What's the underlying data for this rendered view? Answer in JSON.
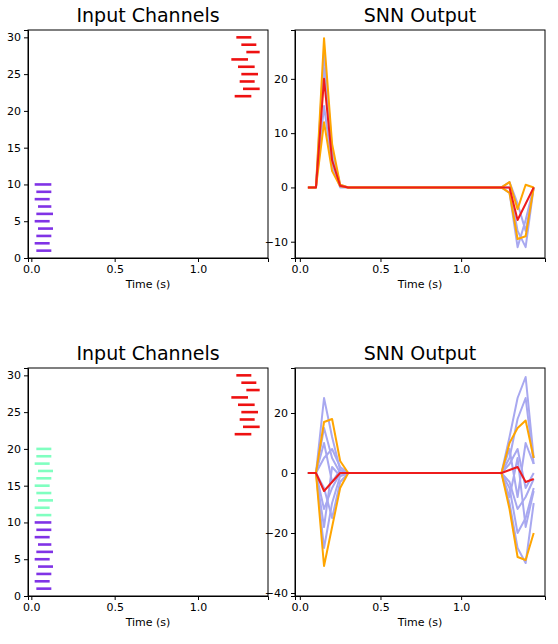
{
  "chart_data": [
    {
      "type": "raster",
      "title": "Input Channels",
      "x_label": "Time (s)",
      "xlim": [
        -0.02,
        1.42
      ],
      "xticks": [
        {
          "value": 0,
          "label": "0.0"
        },
        0.5,
        {
          "value": 1,
          "label": "1.0"
        }
      ],
      "ylim": [
        0,
        31
      ],
      "yticks": [
        0,
        5,
        10,
        15,
        20,
        25,
        30
      ],
      "series": [
        {
          "color": "#8033e6",
          "values": [
            1,
            2,
            3,
            4,
            5,
            6,
            7,
            8,
            9,
            10
          ],
          "start": [
            0.03,
            0.02,
            0.03,
            0.04,
            0.02,
            0.03,
            0.04,
            0.02,
            0.03,
            0.02
          ],
          "end": [
            0.12,
            0.11,
            0.12,
            0.13,
            0.11,
            0.13,
            0.12,
            0.11,
            0.12,
            0.12
          ]
        },
        {
          "color": "#ee1111",
          "values": [
            22,
            23,
            24,
            25,
            26,
            27,
            28,
            29,
            30
          ],
          "start": [
            1.22,
            1.27,
            1.25,
            1.26,
            1.24,
            1.2,
            1.29,
            1.26,
            1.23
          ],
          "end": [
            1.32,
            1.37,
            1.34,
            1.36,
            1.34,
            1.3,
            1.37,
            1.35,
            1.32
          ]
        }
      ]
    },
    {
      "type": "line",
      "title": "SNN Output",
      "x_label": "Time (s)",
      "x": [
        0.05,
        0.1,
        0.15,
        0.2,
        0.25,
        0.3,
        1.25,
        1.3,
        1.35,
        1.4,
        1.45
      ],
      "xlim": [
        -0.03,
        1.52
      ],
      "xticks": [
        {
          "value": 0,
          "label": "0.0"
        },
        0.5,
        {
          "value": 1,
          "label": "1.0"
        }
      ],
      "ylim": [
        -13,
        29
      ],
      "yticks": [
        {
          "value": -10,
          "label": "−10"
        },
        0,
        10,
        20
      ],
      "series": [
        {
          "color": "#a8a8f0",
          "values": [
            0,
            0,
            22,
            6,
            0.5,
            0,
            0,
            0,
            -8,
            -11,
            0
          ]
        },
        {
          "color": "#a8a8f0",
          "values": [
            0,
            0,
            15,
            4,
            0,
            0,
            0,
            1,
            -3,
            -8,
            0
          ]
        },
        {
          "color": "#a8a8f0",
          "values": [
            0,
            0,
            25,
            7,
            0.4,
            0,
            0,
            -1,
            -11,
            -6,
            0
          ]
        },
        {
          "color": "#ffa500",
          "values": [
            0,
            0,
            27.5,
            8,
            0.5,
            0,
            0,
            1,
            -4,
            0.5,
            0
          ]
        },
        {
          "color": "#ffa500",
          "values": [
            0,
            0,
            12,
            3,
            0.2,
            0,
            0,
            -1,
            -9.5,
            -9,
            0
          ]
        },
        {
          "color": "#ee1c1c",
          "values": [
            0,
            0,
            20,
            5,
            0.3,
            0,
            0,
            0,
            -6,
            -3,
            0
          ]
        }
      ]
    },
    {
      "type": "raster",
      "title": "Input Channels",
      "x_label": "Time (s)",
      "xlim": [
        -0.02,
        1.42
      ],
      "xticks": [
        {
          "value": 0,
          "label": "0.0"
        },
        0.5,
        {
          "value": 1,
          "label": "1.0"
        }
      ],
      "ylim": [
        0,
        31
      ],
      "yticks": [
        0,
        5,
        10,
        15,
        20,
        25,
        30
      ],
      "series": [
        {
          "color": "#8033e6",
          "values": [
            1,
            2,
            3,
            4,
            5,
            6,
            7,
            8,
            9,
            10
          ],
          "start": [
            0.03,
            0.02,
            0.03,
            0.04,
            0.02,
            0.03,
            0.04,
            0.02,
            0.03,
            0.02
          ],
          "end": [
            0.12,
            0.11,
            0.12,
            0.13,
            0.11,
            0.13,
            0.12,
            0.11,
            0.12,
            0.12
          ]
        },
        {
          "color": "#80ffc0",
          "values": [
            11,
            12,
            13,
            14,
            15,
            16,
            17,
            18,
            19,
            20
          ],
          "start": [
            0.03,
            0.02,
            0.04,
            0.03,
            0.02,
            0.03,
            0.04,
            0.02,
            0.03,
            0.03
          ],
          "end": [
            0.12,
            0.11,
            0.13,
            0.12,
            0.11,
            0.12,
            0.13,
            0.11,
            0.12,
            0.12
          ]
        },
        {
          "color": "#ee1111",
          "values": [
            22,
            23,
            24,
            25,
            26,
            27,
            28,
            29,
            30
          ],
          "start": [
            1.22,
            1.27,
            1.25,
            1.26,
            1.24,
            1.2,
            1.29,
            1.26,
            1.23
          ],
          "end": [
            1.32,
            1.37,
            1.34,
            1.36,
            1.34,
            1.3,
            1.37,
            1.35,
            1.32
          ]
        }
      ]
    },
    {
      "type": "line",
      "title": "SNN Output",
      "x_label": "Time (s)",
      "x": [
        0.05,
        0.1,
        0.15,
        0.2,
        0.25,
        0.3,
        1.25,
        1.3,
        1.35,
        1.4,
        1.45
      ],
      "xlim": [
        -0.03,
        1.52
      ],
      "xticks": [
        {
          "value": 0,
          "label": "0.0"
        },
        0.5,
        {
          "value": 1,
          "label": "1.0"
        }
      ],
      "ylim": [
        -41,
        35
      ],
      "yticks": [
        {
          "value": -40,
          "label": "−40"
        },
        {
          "value": -20,
          "label": "−20"
        },
        0,
        20
      ],
      "series": [
        {
          "color": "#a8a8f0",
          "values": [
            0,
            0,
            25,
            12,
            1,
            0,
            0,
            12,
            25,
            32,
            5
          ]
        },
        {
          "color": "#a8a8f0",
          "values": [
            0,
            0,
            15,
            5,
            0,
            0,
            0,
            5,
            18,
            25,
            3
          ]
        },
        {
          "color": "#a8a8f0",
          "values": [
            0,
            0,
            -25,
            -10,
            -1,
            0,
            0,
            -10,
            -25,
            -30,
            -10
          ]
        },
        {
          "color": "#a8a8f0",
          "values": [
            0,
            0,
            -12,
            -5,
            0,
            0,
            0,
            -5,
            -20,
            -15,
            -5
          ]
        },
        {
          "color": "#a8a8f0",
          "values": [
            0,
            0,
            5,
            8,
            2,
            0,
            0,
            3,
            8,
            -5,
            0
          ]
        },
        {
          "color": "#a8a8f0",
          "values": [
            0,
            0,
            -5,
            -15,
            -3,
            0,
            0,
            -3,
            -12,
            -8,
            -2
          ]
        },
        {
          "color": "#a8a8f0",
          "values": [
            0,
            0,
            10,
            -3,
            1,
            0,
            0,
            8,
            -8,
            10,
            3
          ]
        },
        {
          "color": "#a8a8f0",
          "values": [
            0,
            0,
            -18,
            2,
            -1,
            0,
            0,
            -8,
            5,
            -18,
            -6
          ]
        },
        {
          "color": "#ffa500",
          "values": [
            0,
            0,
            17,
            18,
            4,
            0,
            0,
            10,
            15,
            17.5,
            5
          ]
        },
        {
          "color": "#ffa500",
          "values": [
            0,
            0,
            -31,
            -18,
            -5,
            0,
            0,
            -12,
            -28,
            -29,
            -20
          ]
        },
        {
          "color": "#ee1c1c",
          "values": [
            0,
            0,
            -6,
            -3,
            0,
            0,
            0,
            1,
            2,
            -3,
            -2
          ]
        }
      ]
    }
  ]
}
